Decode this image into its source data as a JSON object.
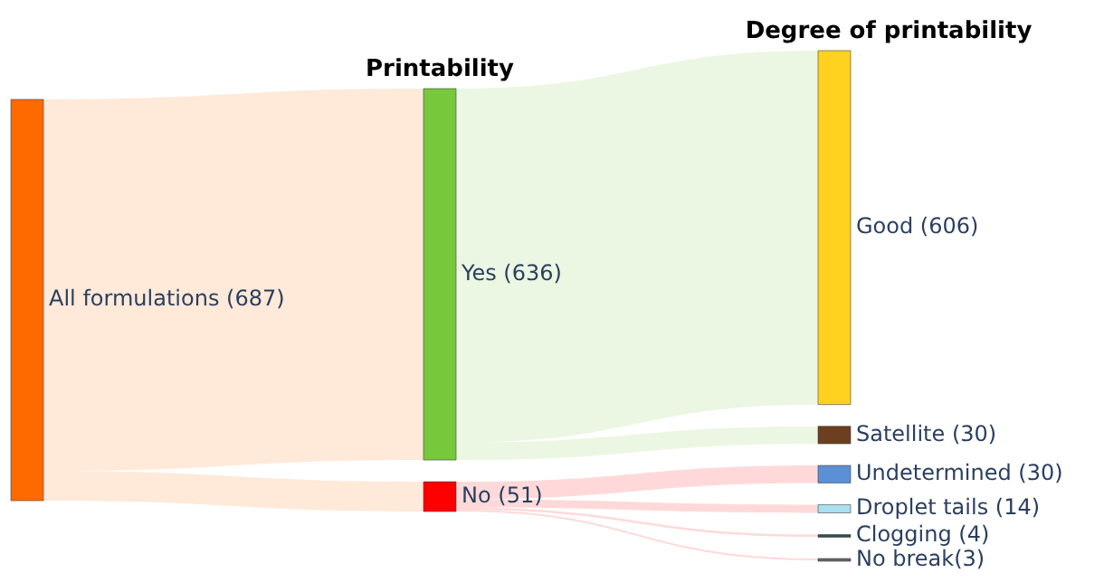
{
  "chart_data": {
    "type": "other",
    "categories": [
      "All formulations",
      "Yes",
      "No",
      "Good",
      "Satellite",
      "Undetermined",
      "Droplet tails",
      "Clogging",
      "No break"
    ],
    "series": [
      {
        "color": "#ff6a00",
        "values": [
          687,
          null,
          null,
          null,
          null,
          null,
          null,
          null,
          null
        ],
        "value_labels": [
          " (687)",
          null,
          null,
          null,
          null,
          null,
          null,
          null,
          null
        ]
      },
      {
        "name": "Printability",
        "colors": [
          null,
          "#77c83a",
          "#ff0000",
          null,
          null,
          null,
          null,
          null,
          null
        ],
        "values": [
          null,
          636,
          51,
          null,
          null,
          null,
          null,
          null,
          null
        ],
        "value_labels": [
          null,
          " (636)",
          " (51)",
          null,
          null,
          null,
          null,
          null,
          null
        ]
      },
      {
        "name": "Degree of printability",
        "colors": [
          null,
          null,
          null,
          "#ffd21f",
          "#6b3f1f",
          "#5b8fd6",
          "#a8e0f0",
          "#2f4f4f",
          "#666666"
        ],
        "values": [
          null,
          null,
          null,
          606,
          30,
          30,
          14,
          4,
          3
        ],
        "value_labels": [
          null,
          null,
          null,
          " (606)",
          " (30)",
          " (30)",
          " (14)",
          " (4)",
          "(3)"
        ]
      }
    ]
  }
}
